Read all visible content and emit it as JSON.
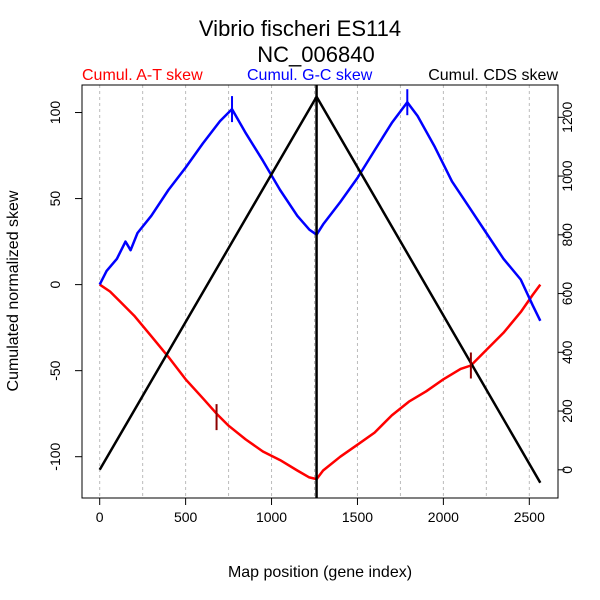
{
  "chart_data": {
    "type": "line",
    "title": "Vibrio fischeri ES114",
    "subtitle": "NC_006840",
    "xlabel": "Map position (gene index)",
    "ylabel": "Cumulated normalized skew",
    "xlim": [
      -103,
      2667
    ],
    "ylim_left": [
      -124,
      116
    ],
    "ylim_right": [
      -96,
      1310
    ],
    "x_ticks": [
      0,
      500,
      1000,
      1500,
      2000,
      2500
    ],
    "y_ticks_left": [
      -100,
      -50,
      0,
      50,
      100
    ],
    "y_ticks_right": [
      0,
      200,
      400,
      600,
      800,
      1000,
      1200
    ],
    "grid": "vertical dashed every 250",
    "legend": [
      {
        "name": "Cumul. A-T skew",
        "color": "#ff0000",
        "placement": "top-left"
      },
      {
        "name": "Cumul. G-C skew",
        "color": "#0000ff",
        "placement": "top-center"
      },
      {
        "name": "Cumul. CDS skew",
        "color": "#000000",
        "placement": "top-right"
      }
    ],
    "vertical_marker_x": 1262,
    "series": [
      {
        "name": "Cumul. A-T skew",
        "axis": "left",
        "color": "#ff0000",
        "x": [
          0,
          60,
          120,
          200,
          300,
          400,
          500,
          600,
          680,
          750,
          850,
          950,
          1050,
          1150,
          1220,
          1262,
          1300,
          1400,
          1500,
          1600,
          1700,
          1800,
          1900,
          2000,
          2100,
          2160,
          2250,
          2350,
          2450,
          2520,
          2564
        ],
        "y": [
          0,
          -4,
          -10,
          -18,
          -30,
          -42,
          -55,
          -66,
          -75,
          -82,
          -90,
          -97,
          -102,
          -108,
          -112,
          -113,
          -108,
          -100,
          -93,
          -86,
          -76,
          -68,
          -62,
          -55,
          -49,
          -47,
          -38,
          -28,
          -16,
          -6,
          0
        ]
      },
      {
        "name": "Cumul. G-C skew",
        "axis": "left",
        "color": "#0000ff",
        "x": [
          0,
          40,
          100,
          150,
          180,
          220,
          300,
          400,
          500,
          600,
          700,
          770,
          850,
          950,
          1050,
          1150,
          1220,
          1262,
          1300,
          1400,
          1500,
          1600,
          1700,
          1790,
          1850,
          1950,
          2050,
          2150,
          2250,
          2350,
          2450,
          2520,
          2564
        ],
        "y": [
          0,
          8,
          15,
          25,
          20,
          30,
          40,
          55,
          68,
          82,
          95,
          102,
          88,
          72,
          55,
          40,
          32,
          29,
          35,
          48,
          62,
          78,
          94,
          106,
          98,
          80,
          60,
          45,
          30,
          15,
          3,
          -12,
          -21
        ]
      },
      {
        "name": "Cumul. CDS skew",
        "axis": "right",
        "color": "#000000",
        "x": [
          0,
          1262,
          2564
        ],
        "y": [
          0,
          1270,
          -44
        ]
      }
    ],
    "annotations": [
      {
        "series": "Cumul. A-T skew",
        "x": 680,
        "y": -77,
        "mark": "tick",
        "color": "#8b0000"
      },
      {
        "series": "Cumul. A-T skew",
        "x": 2160,
        "y": -47,
        "mark": "tick",
        "color": "#8b0000"
      },
      {
        "series": "Cumul. G-C skew",
        "x": 770,
        "y": 102,
        "mark": "tick",
        "color": "#0000ff"
      },
      {
        "series": "Cumul. G-C skew",
        "x": 1790,
        "y": 106,
        "mark": "tick",
        "color": "#0000ff"
      }
    ]
  }
}
